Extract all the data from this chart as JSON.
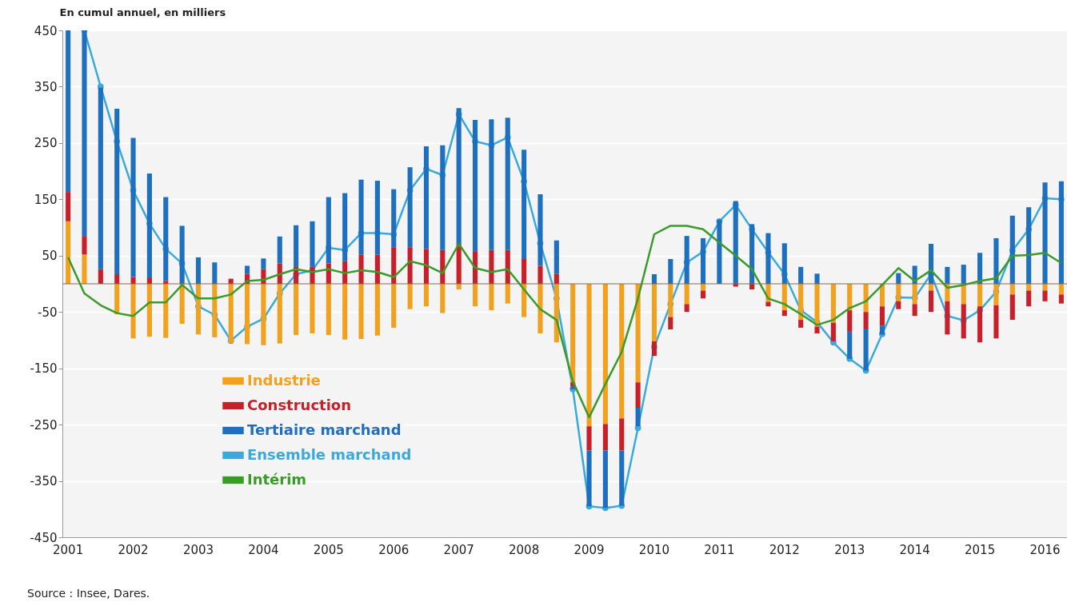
{
  "chart_data": {
    "type": "bar",
    "stacked": true,
    "ylabel": "En cumul annuel, en milliers",
    "annotations": [
      "Source : Insee, Dares."
    ],
    "categories": [
      "2001",
      null,
      null,
      null,
      "2002",
      null,
      null,
      null,
      "2003",
      null,
      null,
      null,
      "2004",
      null,
      null,
      null,
      "2005",
      null,
      null,
      null,
      "2006",
      null,
      null,
      null,
      "2007",
      null,
      null,
      null,
      "2008",
      null,
      null,
      null,
      "2009",
      null,
      null,
      null,
      "2010",
      null,
      null,
      null,
      "2011",
      null,
      null,
      null,
      "2012",
      null,
      null,
      null,
      "2013",
      null,
      null,
      null,
      "2014",
      null,
      null,
      null,
      "2015",
      null,
      null,
      null,
      "2016",
      null
    ],
    "ylim": [
      -450,
      450
    ],
    "yticks": [
      -450,
      -350,
      -250,
      -150,
      -50,
      50,
      150,
      250,
      350,
      450
    ],
    "grid": "y",
    "legend": "bottom left",
    "ref_lines": [
      {
        "axis": "y",
        "value": 0,
        "color": "#8a6a50"
      }
    ],
    "series": [
      {
        "name": "Industrie",
        "color": "#f0a11e",
        "values": [
          111,
          52,
          0,
          -54,
          -97,
          -94,
          -96,
          -71,
          -90,
          -95,
          -105,
          -107,
          -109,
          -106,
          -91,
          -88,
          -91,
          -99,
          -98,
          -92,
          -78,
          -45,
          -40,
          -52,
          -10,
          -40,
          -47,
          -35,
          -59,
          -88,
          -104,
          -175,
          -253,
          -249,
          -239,
          -175,
          -102,
          -59,
          -36,
          -12,
          null,
          0,
          null,
          -32,
          -47,
          -64,
          -76,
          -69,
          -47,
          -50,
          -40,
          -31,
          -36,
          -12,
          -31,
          -36,
          -40,
          -38,
          -19,
          -12,
          -12,
          -19
        ]
      },
      {
        "name": "Construction",
        "color": "#c8202a",
        "values": [
          52,
          33,
          26,
          17,
          12,
          10,
          5,
          0,
          0,
          0,
          9,
          18,
          26,
          36,
          31,
          30,
          36,
          40,
          52,
          52,
          64,
          65,
          62,
          60,
          71,
          58,
          60,
          60,
          44,
          32,
          18,
          -7,
          -43,
          -47,
          -57,
          -45,
          -26,
          -22,
          -14,
          -14,
          0,
          -5,
          -10,
          -8,
          -10,
          -14,
          -12,
          -33,
          -38,
          -31,
          -34,
          -14,
          -21,
          -38,
          -59,
          -61,
          -64,
          -59,
          -45,
          -28,
          -19,
          -16
        ]
      },
      {
        "name": "Tertiaire marchand",
        "color": "#1f6fbf",
        "values": [
          287,
          365,
          322,
          294,
          247,
          186,
          149,
          103,
          47,
          38,
          0,
          14,
          19,
          48,
          73,
          81,
          118,
          121,
          133,
          131,
          104,
          142,
          182,
          186,
          241,
          233,
          232,
          235,
          194,
          127,
          59,
          -5,
          -99,
          -102,
          -98,
          -33,
          17,
          44,
          85,
          81,
          114,
          147,
          106,
          90,
          72,
          30,
          18,
          0,
          -48,
          -73,
          -16,
          19,
          32,
          71,
          30,
          34,
          55,
          81,
          121,
          136,
          180,
          182
        ]
      },
      {
        "name": "Ensemble marchand",
        "type": "line",
        "marker": "circle",
        "color": "#3aa9dc",
        "values": [
          null,
          450,
          350,
          253,
          166,
          107,
          62,
          36,
          -40,
          -55,
          -101,
          -76,
          -62,
          -17,
          17,
          24,
          64,
          60,
          90,
          90,
          88,
          166,
          204,
          193,
          301,
          253,
          246,
          260,
          182,
          72,
          -26,
          -187,
          -395,
          -398,
          -394,
          -256,
          -112,
          -36,
          38,
          57,
          111,
          140,
          97,
          56,
          17,
          -47,
          -68,
          -104,
          -133,
          -154,
          -89,
          -24,
          -25,
          17,
          -57,
          -65,
          -47,
          -14,
          59,
          97,
          152,
          150
        ]
      },
      {
        "name": "Intérim",
        "type": "line",
        "marker": "none",
        "color": "#3a9a2a",
        "values": [
          47,
          -17,
          -38,
          -52,
          -57,
          -33,
          -33,
          -2,
          -26,
          -26,
          -19,
          5,
          7,
          17,
          26,
          21,
          26,
          19,
          24,
          21,
          12,
          40,
          33,
          19,
          71,
          28,
          21,
          26,
          -10,
          -45,
          -64,
          -173,
          -237,
          -178,
          -121,
          -26,
          88,
          103,
          103,
          97,
          73,
          50,
          26,
          -26,
          -36,
          -54,
          -73,
          -64,
          -43,
          -31,
          -2,
          28,
          5,
          24,
          -7,
          -2,
          5,
          10,
          50,
          51,
          55,
          37
        ]
      }
    ]
  }
}
